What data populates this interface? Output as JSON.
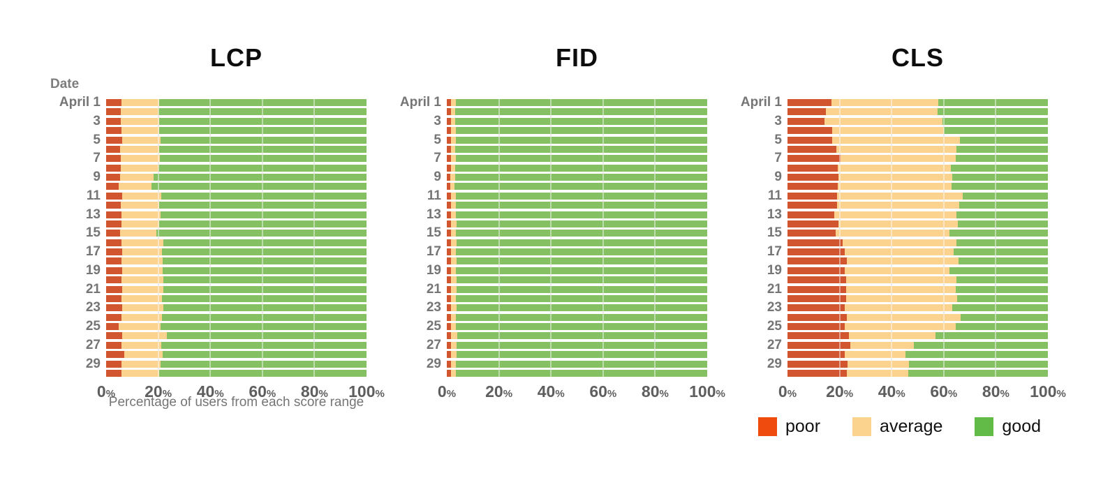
{
  "date_axis_title": "Date",
  "x_axis": {
    "ticks": [
      "0",
      "20",
      "40",
      "60",
      "80",
      "100"
    ],
    "suffix": "%",
    "label": "Percentage of users from each score range"
  },
  "colors": {
    "bar_poor": "#d1552e",
    "bar_average": "#fbd28e",
    "bar_good": "#85c063",
    "gridline": "#dcdcdc"
  },
  "legend": [
    {
      "label": "poor",
      "color": "#ef4b0e"
    },
    {
      "label": "average",
      "color": "#fbd28e"
    },
    {
      "label": "good",
      "color": "#62bb46"
    }
  ],
  "chart_data": [
    {
      "type": "bar",
      "stacked": true,
      "orientation": "horizontal",
      "title": "LCP",
      "xlim": [
        0,
        100
      ],
      "grid": [
        20,
        40,
        60,
        80
      ],
      "categories": [
        "April 1",
        "",
        "3",
        "",
        "5",
        "",
        "7",
        "",
        "9",
        "",
        "11",
        "",
        "13",
        "",
        "15",
        "",
        "17",
        "",
        "19",
        "",
        "21",
        "",
        "23",
        "",
        "25",
        "",
        "27",
        "",
        "29",
        ""
      ],
      "series": [
        {
          "name": "poor",
          "values": [
            6.0,
            5.5,
            5.6,
            6.0,
            6.2,
            5.4,
            5.7,
            5.6,
            5.3,
            4.9,
            6.2,
            5.6,
            5.8,
            5.8,
            5.3,
            6.0,
            6.3,
            5.8,
            6.2,
            6.0,
            6.2,
            6.0,
            6.2,
            5.8,
            4.9,
            6.2,
            6.0,
            7.1,
            6.0,
            6.0
          ]
        },
        {
          "name": "average",
          "values": [
            14.5,
            14.5,
            14.7,
            14.5,
            14.6,
            14.9,
            14.9,
            14.5,
            12.8,
            12.5,
            14.9,
            14.9,
            15.0,
            14.7,
            14.1,
            16.1,
            15.1,
            15.9,
            15.5,
            15.9,
            15.8,
            15.4,
            15.8,
            15.6,
            15.9,
            17.1,
            15.2,
            14.6,
            14.8,
            14.3
          ]
        },
        {
          "name": "good",
          "values": [
            79.5,
            80.0,
            79.7,
            79.5,
            79.2,
            79.7,
            79.4,
            79.9,
            81.9,
            82.6,
            78.9,
            79.5,
            79.2,
            79.5,
            80.6,
            77.9,
            78.6,
            78.3,
            78.3,
            78.1,
            78.0,
            78.6,
            78.0,
            78.6,
            79.2,
            76.7,
            78.8,
            78.3,
            79.2,
            79.7
          ]
        }
      ]
    },
    {
      "type": "bar",
      "stacked": true,
      "orientation": "horizontal",
      "title": "FID",
      "xlim": [
        0,
        100
      ],
      "grid": [
        20,
        40,
        60,
        80
      ],
      "categories": [
        "April 1",
        "",
        "3",
        "",
        "5",
        "",
        "7",
        "",
        "9",
        "",
        "11",
        "",
        "13",
        "",
        "15",
        "",
        "17",
        "",
        "19",
        "",
        "21",
        "",
        "23",
        "",
        "25",
        "",
        "27",
        "",
        "29",
        ""
      ],
      "series": [
        {
          "name": "poor",
          "values": [
            1.6,
            1.5,
            1.5,
            1.6,
            1.6,
            1.5,
            1.6,
            1.5,
            1.4,
            1.4,
            1.6,
            1.5,
            1.6,
            1.6,
            1.5,
            1.6,
            1.6,
            1.6,
            1.6,
            1.6,
            1.6,
            1.6,
            1.6,
            1.6,
            1.5,
            1.7,
            1.6,
            1.7,
            1.6,
            1.6
          ]
        },
        {
          "name": "average",
          "values": [
            1.9,
            1.8,
            1.8,
            1.9,
            1.9,
            1.8,
            1.9,
            1.8,
            1.7,
            1.6,
            1.9,
            1.9,
            1.9,
            2.1,
            2.0,
            2.1,
            2.0,
            2.1,
            2.0,
            2.1,
            2.1,
            2.0,
            2.1,
            2.0,
            2.0,
            2.3,
            2.1,
            2.1,
            2.0,
            2.0
          ]
        },
        {
          "name": "good",
          "values": [
            96.5,
            96.7,
            96.7,
            96.5,
            96.5,
            96.7,
            96.5,
            96.7,
            96.9,
            97.0,
            96.5,
            96.6,
            96.5,
            96.3,
            96.5,
            96.3,
            96.4,
            96.3,
            96.4,
            96.3,
            96.3,
            96.4,
            96.3,
            96.4,
            96.5,
            96.0,
            96.3,
            96.2,
            96.4,
            96.4
          ]
        }
      ]
    },
    {
      "type": "bar",
      "stacked": true,
      "orientation": "horizontal",
      "title": "CLS",
      "xlim": [
        0,
        100
      ],
      "grid": [
        20,
        40,
        60,
        80
      ],
      "categories": [
        "April 1",
        "",
        "3",
        "",
        "5",
        "",
        "7",
        "",
        "9",
        "",
        "11",
        "",
        "13",
        "",
        "15",
        "",
        "17",
        "",
        "19",
        "",
        "21",
        "",
        "23",
        "",
        "25",
        "",
        "27",
        "",
        "29",
        ""
      ],
      "series": [
        {
          "name": "poor",
          "values": [
            17.0,
            14.8,
            14.1,
            17.2,
            17.2,
            18.8,
            20.4,
            19.4,
            19.7,
            19.3,
            19.1,
            19.1,
            17.9,
            19.7,
            18.6,
            21.3,
            22.0,
            22.7,
            22.1,
            22.4,
            22.4,
            22.4,
            22.1,
            22.8,
            22.1,
            23.6,
            24.2,
            22.1,
            23.0,
            22.7
          ]
        },
        {
          "name": "average",
          "values": [
            40.8,
            42.8,
            45.5,
            42.8,
            49.1,
            46.2,
            44.1,
            43.3,
            43.5,
            43.7,
            48.1,
            46.8,
            47.1,
            45.7,
            43.7,
            43.5,
            41.9,
            43.0,
            40.2,
            42.6,
            42.1,
            42.7,
            41.3,
            43.8,
            42.4,
            33.3,
            24.2,
            23.2,
            23.6,
            23.7
          ]
        },
        {
          "name": "good",
          "values": [
            42.2,
            42.4,
            40.4,
            40.0,
            33.7,
            35.0,
            35.5,
            37.3,
            36.8,
            37.0,
            32.8,
            34.1,
            35.0,
            34.6,
            37.7,
            35.2,
            36.1,
            34.3,
            37.7,
            35.0,
            35.5,
            34.9,
            36.6,
            33.4,
            35.5,
            43.1,
            51.6,
            54.7,
            53.4,
            53.6
          ]
        }
      ]
    }
  ]
}
